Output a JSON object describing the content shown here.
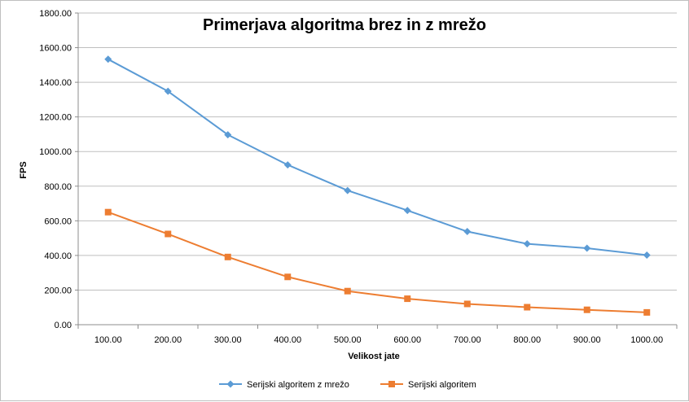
{
  "chart_data": {
    "type": "line",
    "title": "Primerjava algoritma brez in z mrežo",
    "xlabel": "Velikost jate",
    "ylabel": "FPS",
    "categories": [
      "100.00",
      "200.00",
      "300.00",
      "400.00",
      "500.00",
      "600.00",
      "700.00",
      "800.00",
      "900.00",
      "1000.00"
    ],
    "y_ticks": [
      "0.00",
      "200.00",
      "400.00",
      "600.00",
      "800.00",
      "1000.00",
      "1200.00",
      "1400.00",
      "1600.00",
      "1800.00"
    ],
    "ylim": [
      0,
      1800
    ],
    "grid": true,
    "legend_position": "bottom",
    "series": [
      {
        "name": "Serijski algoritem z mrežo",
        "color": "#5b9bd5",
        "marker": "diamond",
        "values": [
          1533,
          1348,
          1097,
          923,
          775,
          660,
          538,
          467,
          442,
          402
        ]
      },
      {
        "name": "Serijski algoritem",
        "color": "#ed7d31",
        "marker": "square",
        "values": [
          650,
          524,
          391,
          276,
          194,
          150,
          120,
          101,
          86,
          71
        ]
      }
    ]
  }
}
